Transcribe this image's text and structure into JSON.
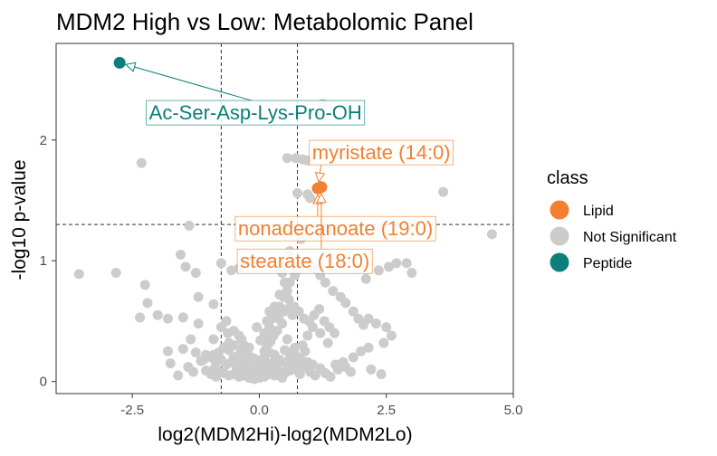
{
  "chart_data": {
    "type": "scatter",
    "title": "MDM2 High vs Low: Metabolomic Panel",
    "xlabel": "log2(MDM2Hi)-log2(MDM2Lo)",
    "ylabel": "-log10 p-value",
    "xlim": [
      -4.0,
      5.0
    ],
    "ylim": [
      -0.1,
      2.8
    ],
    "xticks": [
      -2.5,
      0.0,
      2.5,
      5.0
    ],
    "xtick_labels": [
      "-2.5",
      "0.0",
      "2.5",
      "5.0"
    ],
    "yticks": [
      0,
      1,
      2
    ],
    "ytick_labels": [
      "0",
      "1",
      "2"
    ],
    "grid": false,
    "legend_position": "right",
    "thresholds": {
      "x": [
        -0.75,
        0.75
      ],
      "y": 1.3
    },
    "legend": {
      "title": "class",
      "entries": [
        {
          "label": "Lipid",
          "color": "#F28030"
        },
        {
          "label": "Not Significant",
          "color": "#CCCCCC"
        },
        {
          "label": "Peptide",
          "color": "#0C7F7A"
        }
      ]
    },
    "series": [
      {
        "name": "Lipid",
        "color": "#F28030",
        "points": [
          [
            1.15,
            1.6
          ],
          [
            1.22,
            1.61
          ]
        ]
      },
      {
        "name": "Peptide",
        "color": "#0C7F7A",
        "points": [
          [
            -2.75,
            2.64
          ]
        ]
      },
      {
        "name": "Not Significant",
        "color": "#CCCCCC",
        "points": [
          [
            1.25,
            2.3
          ],
          [
            3.62,
            1.57
          ],
          [
            4.58,
            1.22
          ],
          [
            -2.32,
            1.81
          ],
          [
            -3.55,
            0.89
          ],
          [
            -2.82,
            0.9
          ],
          [
            -1.38,
            1.29
          ],
          [
            0.55,
            1.85
          ],
          [
            0.72,
            1.85
          ],
          [
            0.85,
            1.84
          ],
          [
            0.95,
            1.83
          ],
          [
            0.75,
            1.56
          ],
          [
            0.8,
            1.26
          ],
          [
            0.82,
            1.18
          ],
          [
            0.6,
            1.08
          ],
          [
            0.95,
            1.55
          ],
          [
            1.0,
            1.52
          ],
          [
            2.9,
            0.98
          ],
          [
            3.0,
            0.9
          ],
          [
            2.55,
            0.95
          ],
          [
            2.7,
            0.98
          ],
          [
            2.35,
            0.92
          ],
          [
            2.1,
            0.85
          ],
          [
            -1.55,
            1.05
          ],
          [
            -1.45,
            0.95
          ],
          [
            -1.25,
            0.9
          ],
          [
            -0.75,
            0.98
          ],
          [
            -0.55,
            0.92
          ],
          [
            -0.28,
            1.0
          ],
          [
            -0.4,
            0.94
          ],
          [
            -2.25,
            0.8
          ],
          [
            -2.2,
            0.65
          ],
          [
            -2.35,
            0.53
          ],
          [
            -2.0,
            0.55
          ],
          [
            -1.8,
            0.52
          ],
          [
            -1.2,
            0.7
          ],
          [
            -0.9,
            0.64
          ],
          [
            -1.5,
            0.53
          ],
          [
            -1.2,
            0.48
          ],
          [
            -0.65,
            0.5
          ],
          [
            -0.75,
            0.45
          ],
          [
            -0.9,
            0.35
          ],
          [
            -1.5,
            0.27
          ],
          [
            -1.35,
            0.35
          ],
          [
            -1.8,
            0.25
          ],
          [
            -1.75,
            0.15
          ],
          [
            -1.4,
            0.12
          ],
          [
            -1.1,
            0.18
          ],
          [
            -0.9,
            0.22
          ],
          [
            -0.6,
            0.32
          ],
          [
            -0.3,
            0.3
          ],
          [
            -0.35,
            0.35
          ],
          [
            -0.2,
            0.28
          ],
          [
            0.1,
            0.4
          ],
          [
            0.2,
            0.45
          ],
          [
            0.25,
            0.52
          ],
          [
            0.32,
            0.55
          ],
          [
            0.4,
            0.62
          ],
          [
            0.48,
            0.7
          ],
          [
            0.55,
            0.75
          ],
          [
            0.6,
            0.82
          ],
          [
            0.7,
            0.88
          ],
          [
            0.75,
            0.92
          ],
          [
            0.8,
            0.95
          ],
          [
            0.9,
            0.98
          ],
          [
            1.0,
            0.96
          ],
          [
            1.1,
            0.93
          ],
          [
            1.2,
            0.88
          ],
          [
            1.3,
            0.82
          ],
          [
            1.45,
            0.75
          ],
          [
            1.6,
            0.7
          ],
          [
            1.7,
            0.65
          ],
          [
            1.85,
            0.58
          ],
          [
            1.95,
            0.52
          ],
          [
            2.05,
            0.47
          ],
          [
            2.15,
            0.52
          ],
          [
            2.3,
            0.48
          ],
          [
            2.5,
            0.45
          ],
          [
            2.6,
            0.38
          ],
          [
            2.45,
            0.32
          ],
          [
            2.15,
            0.28
          ],
          [
            2.0,
            0.25
          ],
          [
            1.85,
            0.2
          ],
          [
            1.65,
            0.16
          ],
          [
            1.55,
            0.1
          ],
          [
            1.35,
            0.32
          ],
          [
            1.2,
            0.4
          ],
          [
            1.05,
            0.45
          ],
          [
            0.95,
            0.38
          ],
          [
            0.85,
            0.3
          ],
          [
            0.7,
            0.28
          ],
          [
            0.6,
            0.2
          ],
          [
            0.55,
            0.35
          ],
          [
            0.45,
            0.48
          ],
          [
            0.35,
            0.42
          ],
          [
            0.28,
            0.38
          ],
          [
            0.22,
            0.33
          ],
          [
            0.15,
            0.3
          ],
          [
            0.1,
            0.25
          ],
          [
            0.05,
            0.18
          ],
          [
            0.3,
            0.62
          ],
          [
            0.4,
            0.72
          ],
          [
            0.5,
            0.82
          ],
          [
            0.45,
            0.9
          ],
          [
            0.55,
            0.6
          ],
          [
            0.65,
            0.55
          ],
          [
            0.2,
            0.58
          ],
          [
            0.15,
            0.5
          ],
          [
            0.38,
            0.52
          ],
          [
            0.48,
            0.58
          ],
          [
            0.58,
            0.68
          ],
          [
            0.68,
            0.62
          ],
          [
            0.78,
            0.58
          ],
          [
            0.88,
            0.52
          ],
          [
            0.98,
            0.5
          ],
          [
            1.08,
            0.55
          ],
          [
            1.18,
            0.6
          ],
          [
            1.28,
            0.5
          ],
          [
            1.38,
            0.45
          ],
          [
            1.48,
            0.4
          ],
          [
            -0.1,
            0.02
          ],
          [
            0.0,
            0.03
          ],
          [
            0.1,
            0.04
          ],
          [
            -0.2,
            0.03
          ],
          [
            -0.3,
            0.05
          ],
          [
            -0.4,
            0.04
          ],
          [
            -0.5,
            0.06
          ],
          [
            -0.6,
            0.05
          ],
          [
            -0.7,
            0.07
          ],
          [
            -0.8,
            0.08
          ],
          [
            -0.95,
            0.06
          ],
          [
            -1.05,
            0.09
          ],
          [
            0.2,
            0.06
          ],
          [
            0.3,
            0.05
          ],
          [
            0.4,
            0.08
          ],
          [
            0.5,
            0.07
          ],
          [
            0.6,
            0.09
          ],
          [
            0.7,
            0.1
          ],
          [
            0.8,
            0.06
          ],
          [
            0.9,
            0.12
          ],
          [
            1.0,
            0.08
          ],
          [
            1.1,
            0.05
          ],
          [
            1.2,
            0.11
          ],
          [
            1.3,
            0.07
          ],
          [
            1.4,
            0.04
          ],
          [
            -0.05,
            0.1
          ],
          [
            0.05,
            0.12
          ],
          [
            0.15,
            0.14
          ],
          [
            -0.15,
            0.11
          ],
          [
            -0.25,
            0.13
          ],
          [
            -0.35,
            0.15
          ],
          [
            -0.45,
            0.12
          ],
          [
            -0.55,
            0.16
          ],
          [
            -0.65,
            0.14
          ],
          [
            -0.75,
            0.18
          ],
          [
            -0.85,
            0.15
          ],
          [
            -0.95,
            0.2
          ],
          [
            -1.05,
            0.22
          ],
          [
            -1.15,
            0.17
          ],
          [
            -1.25,
            0.24
          ],
          [
            -0.5,
            0.2
          ],
          [
            -0.4,
            0.22
          ],
          [
            -0.3,
            0.18
          ],
          [
            -0.2,
            0.21
          ],
          [
            -0.1,
            0.19
          ],
          [
            0.0,
            0.16
          ],
          [
            0.1,
            0.2
          ],
          [
            0.2,
            0.24
          ],
          [
            0.3,
            0.22
          ],
          [
            0.4,
            0.18
          ],
          [
            0.5,
            0.26
          ],
          [
            0.6,
            0.24
          ],
          [
            0.7,
            0.22
          ],
          [
            0.8,
            0.19
          ],
          [
            0.9,
            0.25
          ],
          [
            -0.6,
            0.26
          ],
          [
            -0.7,
            0.28
          ],
          [
            -0.8,
            0.24
          ],
          [
            -0.5,
            0.3
          ],
          [
            -0.35,
            0.26
          ],
          [
            -0.2,
            0.14
          ],
          [
            0.25,
            0.15
          ],
          [
            0.35,
            0.13
          ],
          [
            0.45,
            0.16
          ],
          [
            0.55,
            0.14
          ],
          [
            -0.45,
            0.08
          ],
          [
            -0.35,
            0.09
          ],
          [
            -0.25,
            0.07
          ],
          [
            -0.15,
            0.06
          ],
          [
            -0.05,
            0.05
          ],
          [
            0.05,
            0.07
          ],
          [
            0.15,
            0.09
          ],
          [
            0.25,
            0.1
          ],
          [
            0.35,
            0.11
          ],
          [
            0.45,
            0.03
          ],
          [
            0.65,
            0.15
          ],
          [
            0.75,
            0.14
          ],
          [
            0.85,
            0.17
          ],
          [
            0.95,
            0.16
          ],
          [
            1.05,
            0.14
          ],
          [
            -1.3,
            0.08
          ],
          [
            -1.6,
            0.05
          ],
          [
            -0.9,
            0.1
          ],
          [
            -0.85,
            0.04
          ],
          [
            1.5,
            0.14
          ],
          [
            1.7,
            0.12
          ],
          [
            1.8,
            0.08
          ],
          [
            2.2,
            0.1
          ],
          [
            2.4,
            0.06
          ],
          [
            -0.62,
            0.4
          ],
          [
            -0.5,
            0.42
          ],
          [
            -0.4,
            0.38
          ],
          [
            0.02,
            0.34
          ],
          [
            -0.05,
            0.45
          ],
          [
            0.12,
            0.36
          ]
        ]
      }
    ],
    "annotations": [
      {
        "text": "Ac-Ser-Asp-Lys-Pro-OH",
        "color": "#0C7F7A",
        "point": [
          -2.75,
          2.64
        ],
        "label_at": [
          -2.17,
          2.17
        ]
      },
      {
        "text": "myristate (14:0)",
        "color": "#F28030",
        "point": [
          1.15,
          1.6
        ],
        "label_at": [
          1.04,
          1.84
        ]
      },
      {
        "text": "nonadecanoate (19:0)",
        "color": "#F28030",
        "point": [
          1.15,
          1.6
        ],
        "label_at": [
          -0.42,
          1.21
        ]
      },
      {
        "text": "stearate (18:0)",
        "color": "#F28030",
        "point": [
          1.22,
          1.61
        ],
        "label_at": [
          -0.38,
          0.94
        ]
      }
    ]
  }
}
